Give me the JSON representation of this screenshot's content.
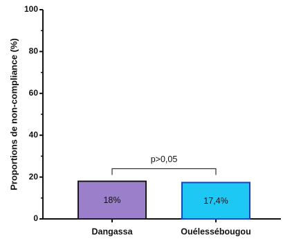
{
  "chart_data": {
    "type": "bar",
    "title": "",
    "xlabel": "",
    "ylabel": "Proportions de non-compliance (%)",
    "ylim": [
      0,
      100
    ],
    "yticks": [
      0,
      20,
      40,
      60,
      80,
      100
    ],
    "ytick_labels": [
      "0",
      "20",
      "40",
      "60",
      "80",
      "100"
    ],
    "grid": false,
    "legend": "none",
    "categories": [
      "Dangassa",
      "Ouélessébougou"
    ],
    "values": [
      18,
      17.4
    ],
    "data_labels": [
      "18%",
      "17,4%"
    ],
    "colors": [
      "#9b7fcb",
      "#1ec8f4"
    ],
    "edge_colors": [
      "#1a1a1a",
      "#1a40c8"
    ],
    "annotation": {
      "text": "p>0,05",
      "between": [
        0,
        1
      ],
      "bracket_y": 24
    }
  }
}
